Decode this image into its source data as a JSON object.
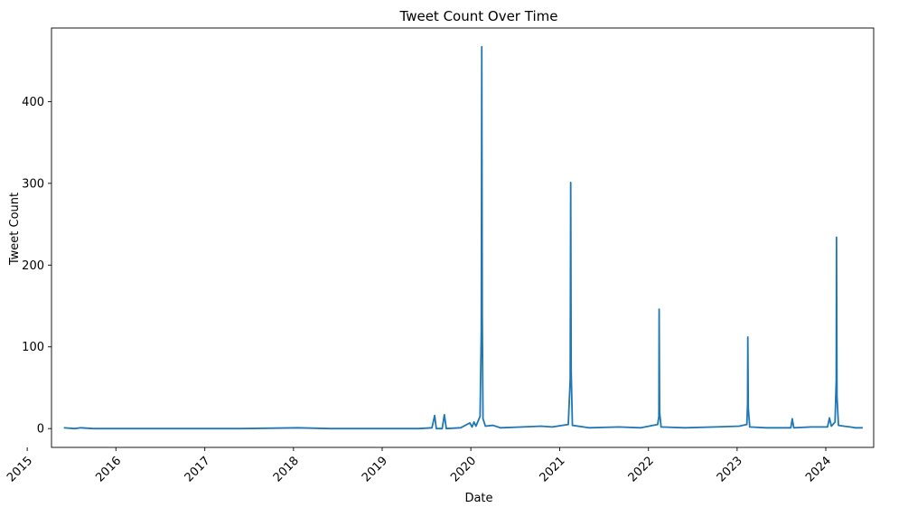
{
  "chart_data": {
    "type": "line",
    "title": "Tweet Count Over Time",
    "xlabel": "Date",
    "ylabel": "Tweet Count",
    "x_ticks": [
      "2015",
      "2016",
      "2017",
      "2018",
      "2019",
      "2020",
      "2021",
      "2022",
      "2023",
      "2024"
    ],
    "y_ticks": [
      0,
      100,
      200,
      300,
      400
    ],
    "xlim": [
      "2015-04-11",
      "2024-07-16"
    ],
    "ylim": [
      -23,
      490
    ],
    "grid": false,
    "legend": "none",
    "series": [
      {
        "color": "#1f77b4",
        "points": [
          [
            "2015-06-01",
            1
          ],
          [
            "2015-07-15",
            0
          ],
          [
            "2015-08-10",
            1
          ],
          [
            "2015-10-01",
            0
          ],
          [
            "2016-06-01",
            0
          ],
          [
            "2017-06-01",
            0
          ],
          [
            "2018-01-20",
            1
          ],
          [
            "2018-06-01",
            0
          ],
          [
            "2019-06-01",
            0
          ],
          [
            "2019-07-25",
            1
          ],
          [
            "2019-08-05",
            16
          ],
          [
            "2019-08-12",
            0
          ],
          [
            "2019-09-05",
            0
          ],
          [
            "2019-09-14",
            17
          ],
          [
            "2019-09-22",
            0
          ],
          [
            "2019-11-20",
            1
          ],
          [
            "2019-12-28",
            7
          ],
          [
            "2020-01-06",
            2
          ],
          [
            "2020-01-14",
            8
          ],
          [
            "2020-01-22",
            3
          ],
          [
            "2020-02-01",
            10
          ],
          [
            "2020-02-08",
            15
          ],
          [
            "2020-02-13",
            120
          ],
          [
            "2020-02-15",
            467
          ],
          [
            "2020-02-17",
            140
          ],
          [
            "2020-02-20",
            12
          ],
          [
            "2020-03-01",
            3
          ],
          [
            "2020-04-01",
            4
          ],
          [
            "2020-05-01",
            1
          ],
          [
            "2020-08-01",
            2
          ],
          [
            "2020-10-15",
            3
          ],
          [
            "2020-12-01",
            2
          ],
          [
            "2021-02-05",
            5
          ],
          [
            "2021-02-13",
            60
          ],
          [
            "2021-02-15",
            301
          ],
          [
            "2021-02-17",
            70
          ],
          [
            "2021-02-22",
            4
          ],
          [
            "2021-05-01",
            1
          ],
          [
            "2021-09-01",
            2
          ],
          [
            "2021-12-01",
            1
          ],
          [
            "2022-02-08",
            5
          ],
          [
            "2022-02-13",
            15
          ],
          [
            "2022-02-14",
            146
          ],
          [
            "2022-02-16",
            20
          ],
          [
            "2022-02-22",
            2
          ],
          [
            "2022-06-01",
            1
          ],
          [
            "2022-10-01",
            2
          ],
          [
            "2023-01-10",
            3
          ],
          [
            "2023-02-10",
            5
          ],
          [
            "2023-02-13",
            30
          ],
          [
            "2023-02-14",
            112
          ],
          [
            "2023-02-16",
            25
          ],
          [
            "2023-02-22",
            2
          ],
          [
            "2023-05-01",
            1
          ],
          [
            "2023-08-10",
            1
          ],
          [
            "2023-08-16",
            12
          ],
          [
            "2023-08-22",
            1
          ],
          [
            "2023-11-01",
            2
          ],
          [
            "2024-01-08",
            2
          ],
          [
            "2024-01-16",
            13
          ],
          [
            "2024-01-24",
            3
          ],
          [
            "2024-02-08",
            8
          ],
          [
            "2024-02-13",
            60
          ],
          [
            "2024-02-14",
            234
          ],
          [
            "2024-02-16",
            40
          ],
          [
            "2024-02-22",
            4
          ],
          [
            "2024-03-15",
            3
          ],
          [
            "2024-04-10",
            2
          ],
          [
            "2024-05-01",
            1
          ],
          [
            "2024-06-01",
            1
          ]
        ]
      }
    ]
  }
}
